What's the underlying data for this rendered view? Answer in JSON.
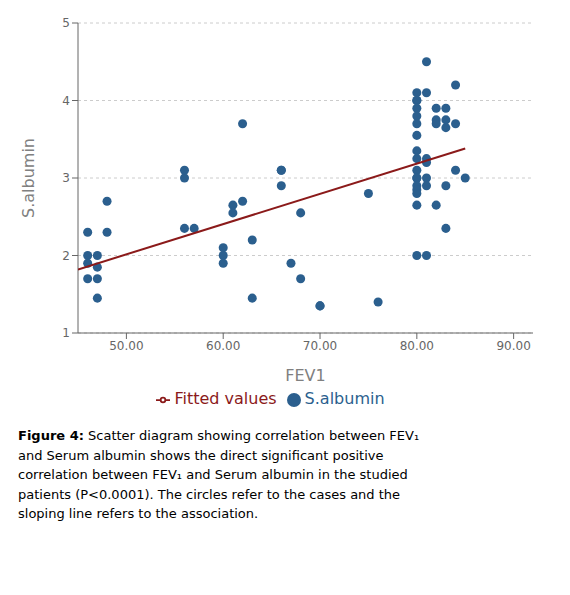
{
  "chart_data": {
    "type": "scatter",
    "xlabel": "FEV1",
    "ylabel": "S.albumin",
    "xlim": [
      45,
      92
    ],
    "ylim": [
      1.0,
      5.0
    ],
    "xticks": [
      {
        "value": 50.0,
        "label": "50.00"
      },
      {
        "value": 60.0,
        "label": "60.00"
      },
      {
        "value": 70.0,
        "label": "70.00"
      },
      {
        "value": 80.0,
        "label": "80.00"
      },
      {
        "value": 90.0,
        "label": "90.00"
      }
    ],
    "yticks": [
      1,
      2,
      3,
      4,
      5
    ],
    "grid": "y",
    "legend": "bottom",
    "series": [
      {
        "name": "S.albumin",
        "type": "scatter",
        "marker": "circle",
        "color": "#2b5f8e",
        "x": [
          46,
          46,
          46,
          46,
          47,
          47,
          47,
          47,
          48,
          48,
          56,
          56,
          56,
          57,
          60,
          60,
          60,
          61,
          61,
          62,
          62,
          63,
          63,
          66,
          66,
          66,
          67,
          68,
          68,
          70,
          70,
          75,
          76,
          80,
          80,
          80,
          80,
          80,
          80,
          80,
          80,
          80,
          80,
          80,
          80,
          80,
          80,
          80,
          80,
          80,
          81,
          81,
          81,
          81,
          81,
          81,
          81,
          82,
          82,
          82,
          82,
          83,
          83,
          83,
          83,
          83,
          84,
          84,
          84,
          85
        ],
        "values": [
          2.3,
          2.0,
          1.9,
          1.7,
          2.0,
          1.85,
          1.7,
          1.45,
          2.7,
          2.3,
          3.0,
          3.1,
          2.35,
          2.35,
          2.1,
          2.0,
          1.9,
          2.65,
          2.55,
          3.7,
          2.7,
          2.2,
          1.45,
          3.1,
          3.1,
          2.9,
          1.9,
          2.55,
          1.7,
          1.35,
          1.35,
          2.8,
          1.4,
          4.1,
          4.0,
          4.0,
          3.9,
          3.8,
          3.7,
          3.55,
          3.35,
          3.25,
          3.1,
          3.0,
          3.0,
          2.9,
          2.85,
          2.8,
          2.65,
          2.0,
          4.5,
          4.1,
          3.25,
          3.2,
          3.0,
          2.9,
          2.0,
          3.9,
          3.75,
          3.7,
          2.65,
          3.9,
          3.75,
          3.65,
          2.9,
          2.35,
          4.2,
          3.7,
          3.1,
          3.0
        ]
      },
      {
        "name": "Fitted values",
        "type": "line",
        "line_style": "solid",
        "color": "#8b1a1a",
        "x": [
          45,
          85
        ],
        "values": [
          1.82,
          3.38
        ]
      }
    ],
    "annotations": [
      "Figure 4: Scatter diagram showing correlation between FEV₁\nand Serum albumin shows the direct significant positive\ncorrelation between FEV₁ and Serum albumin in the studied\npatients (P<0.0001). The circles refer to the cases and the\nsloping line refers to the association."
    ]
  }
}
